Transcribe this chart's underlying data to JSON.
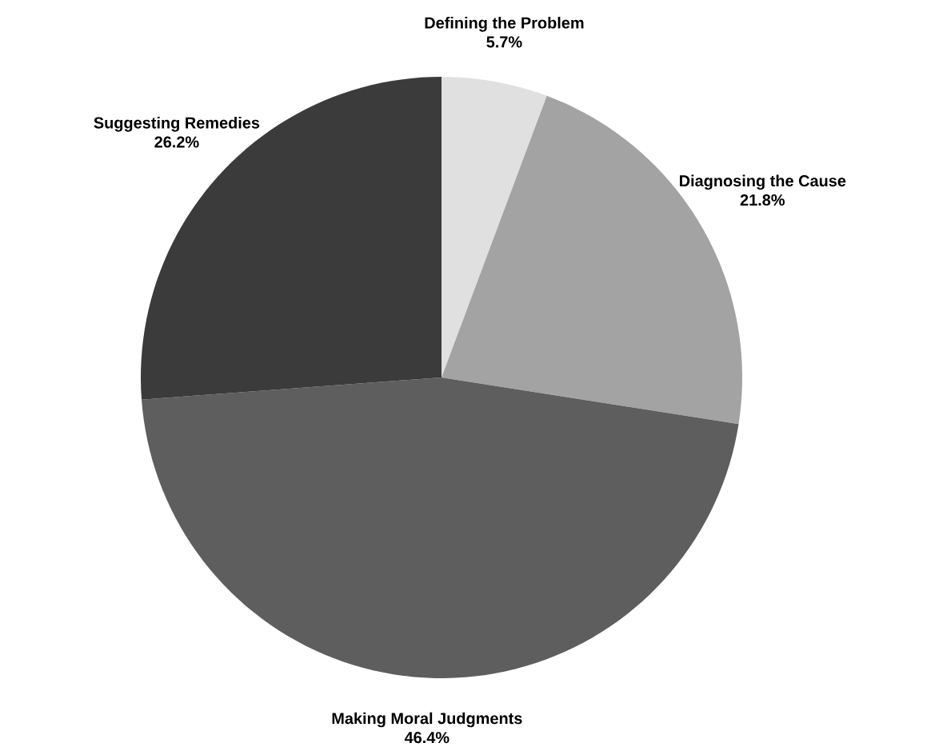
{
  "chart_data": {
    "type": "pie",
    "categories": [
      "Defining the Problem",
      "Diagnosing the Cause",
      "Making Moral Judgments",
      "Suggesting Remedies"
    ],
    "values": [
      5.7,
      21.8,
      46.4,
      26.2
    ],
    "value_labels": [
      "5.7%",
      "21.8%",
      "46.4%",
      "26.2%"
    ],
    "colors": [
      "#e0e0e0",
      "#a3a3a3",
      "#5e5e5e",
      "#3b3b3b"
    ]
  }
}
